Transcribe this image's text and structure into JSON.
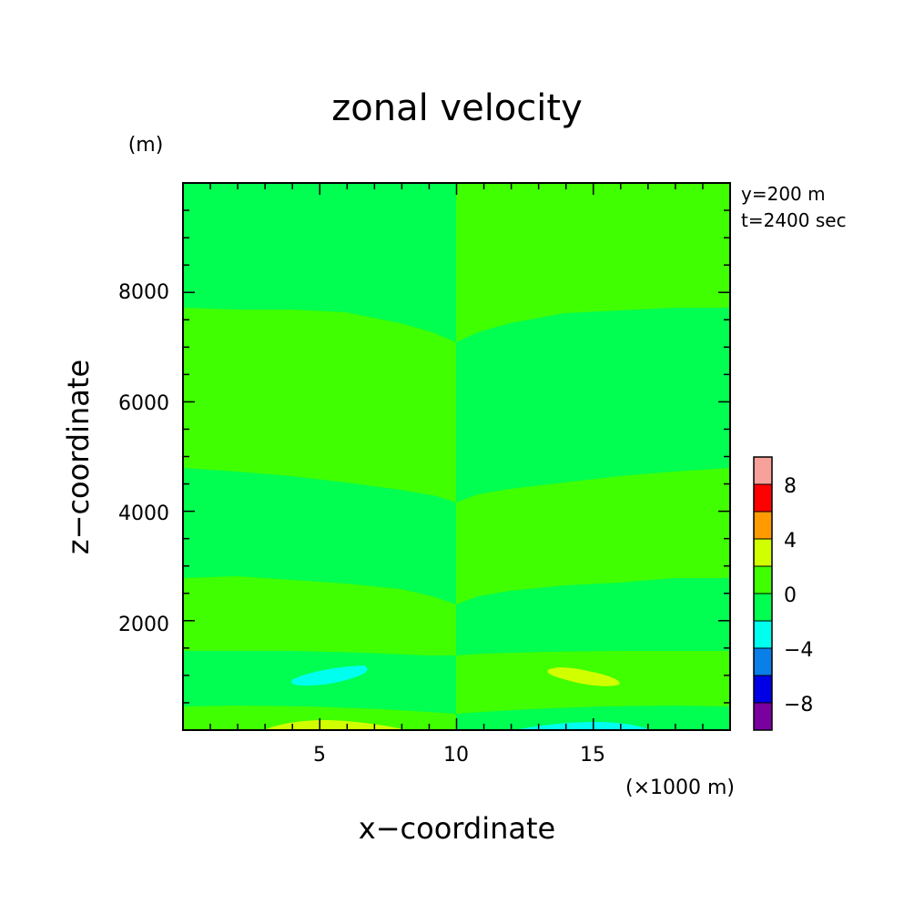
{
  "chart_data": {
    "type": "contour",
    "title": "zonal velocity",
    "xlabel": "x−coordinate",
    "ylabel": "z−coordinate",
    "x_unit": "(×1000 m)",
    "y_unit": "(m)",
    "xlim": [
      0,
      20
    ],
    "ylim": [
      0,
      10000
    ],
    "x_ticks": [
      5,
      10,
      15
    ],
    "y_ticks": [
      2000,
      4000,
      6000,
      8000
    ],
    "annotations": [
      "y=200 m",
      "t=2400 sec"
    ],
    "colorbar": {
      "levels": [
        -10,
        -8,
        -6,
        -4,
        -2,
        0,
        2,
        4,
        6,
        8,
        10
      ],
      "colors": [
        "#7a00a0",
        "#0000e6",
        "#0a7fe8",
        "#00ffee",
        "#00ff50",
        "#40ff00",
        "#d2ff00",
        "#ff9a00",
        "#ff0000",
        "#f8a09a"
      ],
      "tick_labels": [
        "−8",
        "−4",
        "0",
        "4",
        "8"
      ],
      "tick_values": [
        -8,
        -4,
        0,
        4,
        8
      ]
    },
    "regions": [
      {
        "level": "0 to 2",
        "x": [
          0,
          10
        ],
        "z": [
          4800,
          7700
        ]
      },
      {
        "level": "0 to 2",
        "x": [
          0,
          10
        ],
        "z": [
          1500,
          2800
        ]
      },
      {
        "level": "0 to 2",
        "x": [
          0,
          10
        ],
        "z": [
          0,
          450
        ]
      },
      {
        "level": "0 to 2",
        "x": [
          10,
          20
        ],
        "z": [
          7000,
          10000
        ]
      },
      {
        "level": "0 to 2",
        "x": [
          10,
          20
        ],
        "z": [
          4100,
          4800
        ]
      },
      {
        "level": "0 to 2",
        "x": [
          10,
          20
        ],
        "z": [
          1400,
          2300
        ]
      },
      {
        "level": "0 to 2",
        "x": [
          10,
          20
        ],
        "z": [
          0,
          400
        ]
      },
      {
        "level": "-4 to -2",
        "x": [
          4.0,
          6.7
        ],
        "z": [
          800,
          1150
        ]
      },
      {
        "level": "2 to 4",
        "x": [
          13.4,
          16.0
        ],
        "z": [
          800,
          1150
        ]
      },
      {
        "level": "2 to 4",
        "x": [
          4.0,
          7.5
        ],
        "z": [
          0,
          150
        ]
      },
      {
        "level": "-4 to -2",
        "x": [
          12.5,
          16.0
        ],
        "z": [
          0,
          150
        ]
      }
    ]
  }
}
